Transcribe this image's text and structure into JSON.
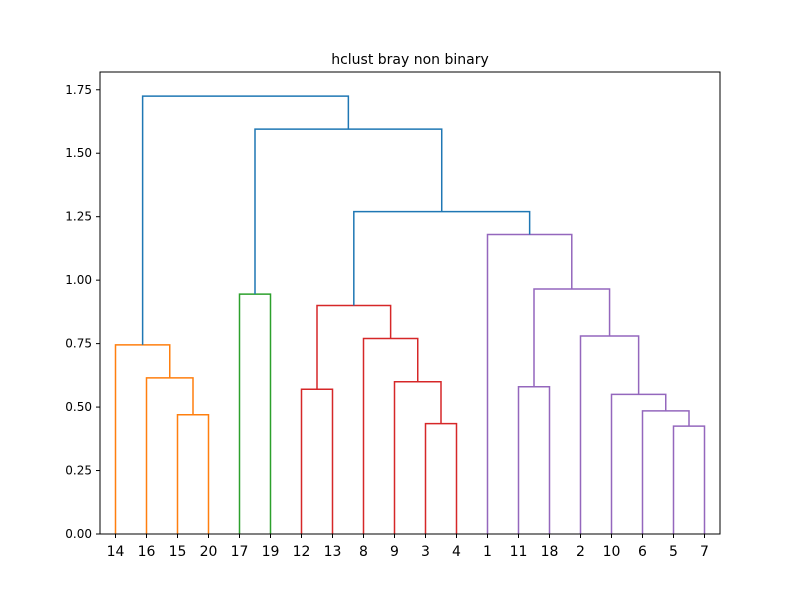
{
  "chart_data": {
    "type": "dendrogram",
    "title": "hclust bray non binary",
    "leaves": [
      "14",
      "16",
      "15",
      "20",
      "17",
      "19",
      "12",
      "13",
      "8",
      "9",
      "3",
      "4",
      "1",
      "11",
      "18",
      "2",
      "10",
      "6",
      "5",
      "7"
    ],
    "yticks": [
      0.0,
      0.25,
      0.5,
      0.75,
      1.0,
      1.25,
      1.5,
      1.75
    ],
    "ytick_labels": [
      "0.00",
      "0.25",
      "0.50",
      "0.75",
      "1.00",
      "1.25",
      "1.50",
      "1.75"
    ],
    "ylim": [
      0,
      1.82
    ],
    "grid": false,
    "merges": [
      {
        "left": "leaf:15",
        "right": "leaf:20",
        "height": 0.47,
        "color": "#ff7f0e"
      },
      {
        "left": "leaf:16",
        "right": "m1",
        "height": 0.615,
        "color": "#ff7f0e"
      },
      {
        "left": "leaf:14",
        "right": "m2",
        "height": 0.745,
        "color": "#ff7f0e"
      },
      {
        "left": "leaf:17",
        "right": "leaf:19",
        "height": 0.945,
        "color": "#2ca02c"
      },
      {
        "left": "leaf:12",
        "right": "leaf:13",
        "height": 0.57,
        "color": "#d62728"
      },
      {
        "left": "leaf:3",
        "right": "leaf:4",
        "height": 0.435,
        "color": "#d62728"
      },
      {
        "left": "leaf:9",
        "right": "m6",
        "height": 0.6,
        "color": "#d62728"
      },
      {
        "left": "leaf:8",
        "right": "m7",
        "height": 0.77,
        "color": "#d62728"
      },
      {
        "left": "m5",
        "right": "m8",
        "height": 0.9,
        "color": "#d62728"
      },
      {
        "left": "leaf:11",
        "right": "leaf:18",
        "height": 0.58,
        "color": "#9467bd"
      },
      {
        "left": "leaf:5",
        "right": "leaf:7",
        "height": 0.425,
        "color": "#9467bd"
      },
      {
        "left": "leaf:6",
        "right": "m11",
        "height": 0.485,
        "color": "#9467bd"
      },
      {
        "left": "leaf:10",
        "right": "m12",
        "height": 0.55,
        "color": "#9467bd"
      },
      {
        "left": "leaf:2",
        "right": "m13",
        "height": 0.78,
        "color": "#9467bd"
      },
      {
        "left": "m10",
        "right": "m14",
        "height": 0.965,
        "color": "#9467bd"
      },
      {
        "left": "leaf:1",
        "right": "m15",
        "height": 1.18,
        "color": "#9467bd"
      },
      {
        "left": "m9",
        "right": "m16",
        "height": 1.27,
        "color": "#1f77b4"
      },
      {
        "left": "m4",
        "right": "m17",
        "height": 1.595,
        "color": "#1f77b4"
      },
      {
        "left": "m3",
        "right": "m18",
        "height": 1.725,
        "color": "#1f77b4"
      }
    ]
  }
}
